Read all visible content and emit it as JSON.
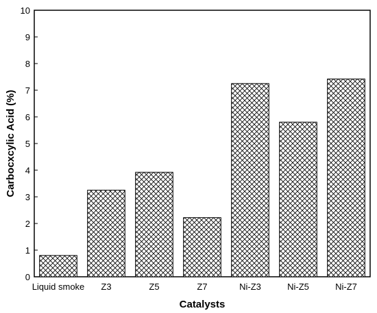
{
  "chart_data": {
    "type": "bar",
    "categories": [
      "Liquid smoke",
      "Z3",
      "Z5",
      "Z7",
      "Ni-Z3",
      "Ni-Z5",
      "Ni-Z7"
    ],
    "values": [
      0.8,
      3.25,
      3.92,
      2.22,
      7.25,
      5.8,
      7.42
    ],
    "title": "",
    "xlabel": "Catalysts",
    "ylabel": "Carbocxcylic Acid (%)",
    "ylim": [
      0,
      10
    ],
    "yticks": [
      0,
      1,
      2,
      3,
      4,
      5,
      6,
      7,
      8,
      9,
      10
    ],
    "grid": false,
    "legend": "none",
    "bar_fill": "crosshatch",
    "colors": {
      "bar_stroke": "#000000",
      "hatch": "#000000",
      "background": "#ffffff"
    }
  }
}
